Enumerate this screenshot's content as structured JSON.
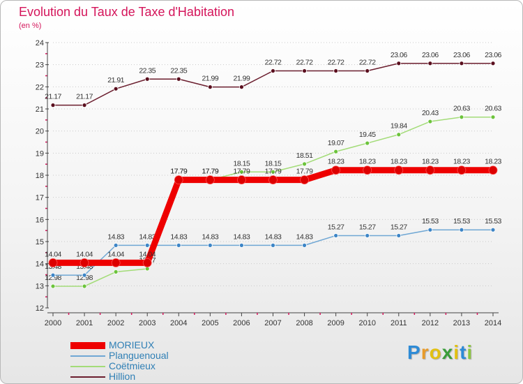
{
  "title": "Evolution du Taux de Taxe d'Habitation",
  "subtitle": "(en %)",
  "logo": {
    "letters": [
      "P",
      "r",
      "o",
      "x",
      "i",
      "t",
      "i"
    ],
    "colors": [
      "#2e8bd6",
      "#e89b2a",
      "#e2c012",
      "#3a9d3a",
      "#e2c012",
      "#2e8bd6",
      "#8cc63f"
    ]
  },
  "colors": {
    "title": "#d4145a",
    "axis": "#444444",
    "grid": "#c9c9c9",
    "tick_mark": "#d4145a"
  },
  "chart_data": {
    "type": "line",
    "x": [
      "2000",
      "2001",
      "2002",
      "2003",
      "2004",
      "2005",
      "2006",
      "2007",
      "2008",
      "2009",
      "2010",
      "2011",
      "2012",
      "2013",
      "2014"
    ],
    "ylim": [
      12,
      24
    ],
    "yticks": [
      "12",
      "13",
      "14",
      "15",
      "16",
      "17",
      "18",
      "19",
      "20",
      "21",
      "22",
      "23",
      "24"
    ],
    "grid": "horizontal dotted",
    "legend_position": "bottom-left",
    "series": [
      {
        "name": "Hillion",
        "color": "#6b1e2e",
        "marker": "#5a0f1e",
        "width": 1.5,
        "values": [
          21.17,
          21.17,
          21.91,
          22.35,
          22.35,
          21.99,
          21.99,
          22.72,
          22.72,
          22.72,
          22.72,
          23.06,
          23.06,
          23.06,
          23.06
        ],
        "labels": [
          "21.17",
          "21.17",
          "21.91",
          "22.35",
          "22.35",
          "21.99",
          "21.99",
          "22.72",
          "22.72",
          "22.72",
          "22.72",
          "23.06",
          "23.06",
          "23.06",
          "23.06"
        ]
      },
      {
        "name": "Coëtmieux",
        "color": "#a3dc78",
        "marker": "#6cc33c",
        "width": 1.5,
        "values": [
          12.98,
          12.98,
          13.63,
          13.77,
          17.79,
          17.79,
          18.15,
          18.15,
          18.51,
          19.07,
          19.45,
          19.84,
          20.43,
          20.63,
          20.63
        ],
        "labels": [
          "12.98",
          "12.98",
          "13.63",
          "13.77",
          "17.79",
          "17.79",
          "18.15",
          "18.15",
          "18.51",
          "19.07",
          "19.45",
          "19.84",
          "20.43",
          "20.63",
          "20.63"
        ]
      },
      {
        "name": "Planguenoual",
        "color": "#6fa7d4",
        "marker": "#3d85c6",
        "width": 1.5,
        "values": [
          13.48,
          13.48,
          14.83,
          14.83,
          14.83,
          14.83,
          14.83,
          14.83,
          14.83,
          15.27,
          15.27,
          15.27,
          15.53,
          15.53,
          15.53
        ],
        "labels": [
          "13.48",
          "13.48",
          "14.83",
          "14.83",
          "14.83",
          "14.83",
          "14.83",
          "14.83",
          "14.83",
          "15.27",
          "15.27",
          "15.27",
          "15.53",
          "15.53",
          "15.53"
        ]
      },
      {
        "name": "MORIEUX",
        "color": "#ee0000",
        "marker": "#dd0000",
        "width": 9,
        "values": [
          14.04,
          14.04,
          14.04,
          14.04,
          17.79,
          17.79,
          17.79,
          17.79,
          17.79,
          18.23,
          18.23,
          18.23,
          18.23,
          18.23,
          18.23
        ],
        "labels": [
          "14.04",
          "14.04",
          "14.04",
          "14.04",
          "17.79",
          "17.79",
          "17.79",
          "17.79",
          "17.79",
          "18.23",
          "18.23",
          "18.23",
          "18.23",
          "18.23",
          "18.23"
        ]
      }
    ],
    "legend_order": [
      "MORIEUX",
      "Planguenoual",
      "Coëtmieux",
      "Hillion"
    ]
  }
}
